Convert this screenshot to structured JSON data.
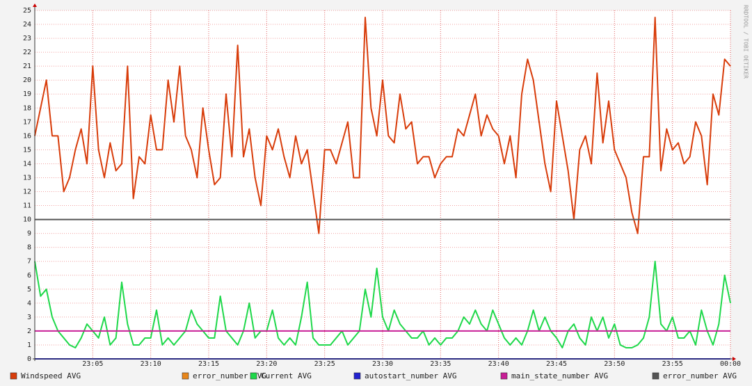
{
  "chart_data": {
    "type": "line",
    "watermark": "RRDTOOL / TOBI OETIKER",
    "xlim": [
      0,
      60
    ],
    "xticks": [
      {
        "value": 5,
        "label": "23:05"
      },
      {
        "value": 10,
        "label": "23:10"
      },
      {
        "value": 15,
        "label": "23:15"
      },
      {
        "value": 20,
        "label": "23:20"
      },
      {
        "value": 25,
        "label": "23:25"
      },
      {
        "value": 30,
        "label": "23:30"
      },
      {
        "value": 35,
        "label": "23:35"
      },
      {
        "value": 40,
        "label": "23:40"
      },
      {
        "value": 45,
        "label": "23:45"
      },
      {
        "value": 50,
        "label": "23:50"
      },
      {
        "value": 55,
        "label": "23:55"
      },
      {
        "value": 60,
        "label": "00:00"
      }
    ],
    "ylim": [
      0,
      25
    ],
    "yticks": [
      0,
      1,
      2,
      3,
      4,
      5,
      6,
      7,
      8,
      9,
      10,
      11,
      12,
      13,
      14,
      15,
      16,
      17,
      18,
      19,
      20,
      21,
      22,
      23,
      24,
      25
    ],
    "grid": true,
    "x": [
      0,
      0.5,
      1,
      1.5,
      2,
      2.5,
      3,
      3.5,
      4,
      4.5,
      5,
      5.5,
      6,
      6.5,
      7,
      7.5,
      8,
      8.5,
      9,
      9.5,
      10,
      10.5,
      11,
      11.5,
      12,
      12.5,
      13,
      13.5,
      14,
      14.5,
      15,
      15.5,
      16,
      16.5,
      17,
      17.5,
      18,
      18.5,
      19,
      19.5,
      20,
      20.5,
      21,
      21.5,
      22,
      22.5,
      23,
      23.5,
      24,
      24.5,
      25,
      25.5,
      26,
      26.5,
      27,
      27.5,
      28,
      28.5,
      29,
      29.5,
      30,
      30.5,
      31,
      31.5,
      32,
      32.5,
      33,
      33.5,
      34,
      34.5,
      35,
      35.5,
      36,
      36.5,
      37,
      37.5,
      38,
      38.5,
      39,
      39.5,
      40,
      40.5,
      41,
      41.5,
      42,
      42.5,
      43,
      43.5,
      44,
      44.5,
      45,
      45.5,
      46,
      46.5,
      47,
      47.5,
      48,
      48.5,
      49,
      49.5,
      50,
      50.5,
      51,
      51.5,
      52,
      52.5,
      53,
      53.5,
      54,
      54.5,
      55,
      55.5,
      56,
      56.5,
      57,
      57.5,
      58,
      58.5,
      59,
      59.5,
      60
    ],
    "series": [
      {
        "name": "Windspeed AVG",
        "color": "#d83c0a",
        "values": [
          16,
          18,
          20,
          16,
          16,
          12,
          13,
          15,
          16.5,
          14,
          21,
          15,
          13,
          15.5,
          13.5,
          14,
          21,
          11.5,
          14.5,
          14,
          17.5,
          15,
          15,
          20,
          17,
          21,
          16,
          15,
          13,
          18,
          15,
          12.5,
          13,
          19,
          14.5,
          22.5,
          14.5,
          16.5,
          13,
          11,
          16,
          15,
          16.5,
          14.5,
          13,
          16,
          14,
          15,
          12,
          9,
          15,
          15,
          14,
          15.5,
          17,
          13,
          13,
          24.5,
          18,
          16,
          20,
          16,
          15.5,
          19,
          16.5,
          17,
          14,
          14.5,
          14.5,
          13,
          14,
          14.5,
          14.5,
          16.5,
          16,
          17.5,
          19,
          16,
          17.5,
          16.5,
          16,
          14,
          16,
          13,
          19,
          21.5,
          20,
          17,
          14,
          12,
          18.5,
          16,
          13.5,
          10,
          15,
          16,
          14,
          20.5,
          15.5,
          18.5,
          15,
          14,
          13,
          10.5,
          9,
          14.5,
          14.5,
          24.5,
          13.5,
          16.5,
          15,
          15.5,
          14,
          14.5,
          17,
          16,
          12.5,
          19,
          17.5,
          21.5,
          21
        ]
      },
      {
        "name": "error_number AVG",
        "color": "#e8861a",
        "x": [
          0,
          60
        ],
        "values": [
          0,
          0
        ]
      },
      {
        "name": "Current AVG",
        "color": "#1ed84a",
        "values": [
          7,
          4.5,
          5,
          3,
          2,
          1.5,
          1,
          0.8,
          1.5,
          2.5,
          2,
          1.5,
          3,
          1,
          1.5,
          5.5,
          2.5,
          1,
          1,
          1.5,
          1.5,
          3.5,
          1,
          1.5,
          1,
          1.5,
          2,
          3.5,
          2.5,
          2,
          1.5,
          1.5,
          4.5,
          2,
          1.5,
          1,
          2,
          4,
          1.5,
          2,
          2,
          3.5,
          1.5,
          1,
          1.5,
          1,
          3,
          5.5,
          1.5,
          1,
          1,
          1,
          1.5,
          2,
          1,
          1.5,
          2,
          5,
          3,
          6.5,
          3,
          2,
          3.5,
          2.5,
          2,
          1.5,
          1.5,
          2,
          1,
          1.5,
          1,
          1.5,
          1.5,
          2,
          3,
          2.5,
          3.5,
          2.5,
          2,
          3.5,
          2.5,
          1.5,
          1,
          1.5,
          1,
          2,
          3.5,
          2,
          3,
          2,
          1.5,
          0.8,
          2,
          2.5,
          1.5,
          1,
          3,
          2,
          3,
          1.5,
          2.5,
          1,
          0.8,
          0.8,
          1,
          1.5,
          3,
          7,
          2.5,
          2,
          3,
          1.5,
          1.5,
          2,
          1,
          3.5,
          2,
          1,
          2.5,
          6,
          4
        ]
      },
      {
        "name": "autostart_number AVG",
        "color": "#2222d0",
        "x": [
          0,
          60
        ],
        "values": [
          0,
          0
        ]
      },
      {
        "name": "main_state_number AVG",
        "color": "#c81e96",
        "x": [
          0,
          60
        ],
        "values": [
          2,
          2
        ]
      },
      {
        "name": "error_number AVG",
        "color": "#555555",
        "x": [
          0,
          60
        ],
        "values": [
          10,
          10
        ]
      }
    ]
  }
}
